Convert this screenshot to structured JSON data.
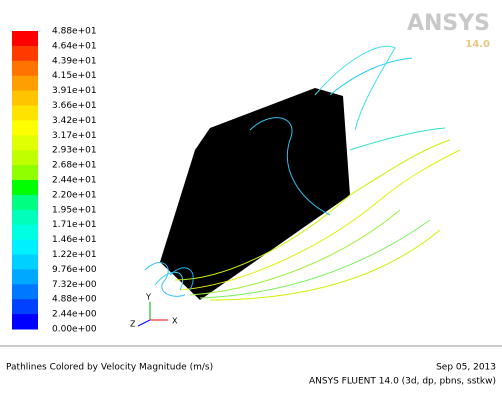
{
  "logo": {
    "brand": "ANSYS",
    "version": "14.0"
  },
  "colorbar": {
    "labels": [
      "4.88e+01",
      "4.64e+01",
      "4.39e+01",
      "4.15e+01",
      "3.91e+01",
      "3.66e+01",
      "3.42e+01",
      "3.17e+01",
      "2.93e+01",
      "2.68e+01",
      "2.44e+01",
      "2.20e+01",
      "1.95e+01",
      "1.71e+01",
      "1.46e+01",
      "1.22e+01",
      "9.76e+00",
      "7.32e+00",
      "4.88e+00",
      "2.44e+00",
      "0.00e+00"
    ],
    "colors": [
      "#ff0000",
      "#ff3a00",
      "#ff7400",
      "#ff9e00",
      "#ffc400",
      "#ffe300",
      "#ffff00",
      "#e0ff00",
      "#c0ff00",
      "#90ff00",
      "#00ff00",
      "#00ff80",
      "#00ffbb",
      "#00ffe0",
      "#00f0ff",
      "#00d0ff",
      "#00a8ff",
      "#0078ff",
      "#0040ff",
      "#0000ff"
    ]
  },
  "axes": {
    "x": "X",
    "y": "Y",
    "z": "Z"
  },
  "footer": {
    "title": "Pathlines Colored by Velocity Magnitude (m/s)",
    "date": "Sep 05, 2013",
    "solver": "ANSYS FLUENT 14.0 (3d, dp, pbns, sstkw)"
  }
}
